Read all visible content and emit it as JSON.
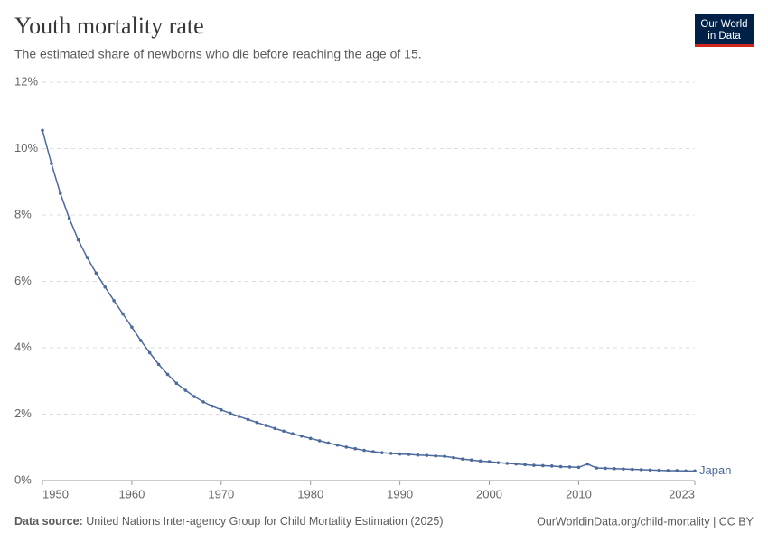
{
  "chart_data": {
    "type": "line",
    "title": "Youth mortality rate",
    "subtitle": "The estimated share of newborns who die before reaching the age of 15.",
    "logo": [
      "Our World",
      "in Data"
    ],
    "source_label": "Data source:",
    "source": "United Nations Inter-agency Group for Child Mortality Estimation (2025)",
    "footer_right": "OurWorldinData.org/child-mortality | CC BY",
    "x": [
      1950,
      1951,
      1952,
      1953,
      1954,
      1955,
      1956,
      1957,
      1958,
      1959,
      1960,
      1961,
      1962,
      1963,
      1964,
      1965,
      1966,
      1967,
      1968,
      1969,
      1970,
      1971,
      1972,
      1973,
      1974,
      1975,
      1976,
      1977,
      1978,
      1979,
      1980,
      1981,
      1982,
      1983,
      1984,
      1985,
      1986,
      1987,
      1988,
      1989,
      1990,
      1991,
      1992,
      1993,
      1994,
      1995,
      1996,
      1997,
      1998,
      1999,
      2000,
      2001,
      2002,
      2003,
      2004,
      2005,
      2006,
      2007,
      2008,
      2009,
      2010,
      2011,
      2012,
      2013,
      2014,
      2015,
      2016,
      2017,
      2018,
      2019,
      2020,
      2021,
      2022,
      2023
    ],
    "series": [
      {
        "name": "Japan",
        "color": "#4c6a9c",
        "values": [
          10.55,
          9.55,
          8.65,
          7.9,
          7.25,
          6.72,
          6.25,
          5.83,
          5.42,
          5.02,
          4.62,
          4.22,
          3.85,
          3.5,
          3.2,
          2.93,
          2.72,
          2.53,
          2.37,
          2.24,
          2.13,
          2.03,
          1.93,
          1.84,
          1.75,
          1.66,
          1.57,
          1.49,
          1.41,
          1.34,
          1.27,
          1.2,
          1.13,
          1.07,
          1.01,
          0.96,
          0.91,
          0.87,
          0.84,
          0.82,
          0.8,
          0.79,
          0.77,
          0.76,
          0.74,
          0.73,
          0.69,
          0.65,
          0.62,
          0.59,
          0.57,
          0.54,
          0.52,
          0.5,
          0.48,
          0.46,
          0.45,
          0.44,
          0.42,
          0.41,
          0.4,
          0.5,
          0.38,
          0.37,
          0.36,
          0.35,
          0.34,
          0.33,
          0.32,
          0.31,
          0.3,
          0.3,
          0.29,
          0.29
        ]
      }
    ],
    "xlim": [
      1950,
      2023
    ],
    "xticks": [
      1950,
      1960,
      1970,
      1980,
      1990,
      2000,
      2010,
      2023
    ],
    "ylim": [
      0,
      12
    ],
    "yticks": [
      {
        "value": 0,
        "label": "0%"
      },
      {
        "value": 2,
        "label": "2%"
      },
      {
        "value": 4,
        "label": "4%"
      },
      {
        "value": 6,
        "label": "6%"
      },
      {
        "value": 8,
        "label": "8%"
      },
      {
        "value": 10,
        "label": "10%"
      },
      {
        "value": 12,
        "label": "12%"
      }
    ],
    "grid": true
  }
}
